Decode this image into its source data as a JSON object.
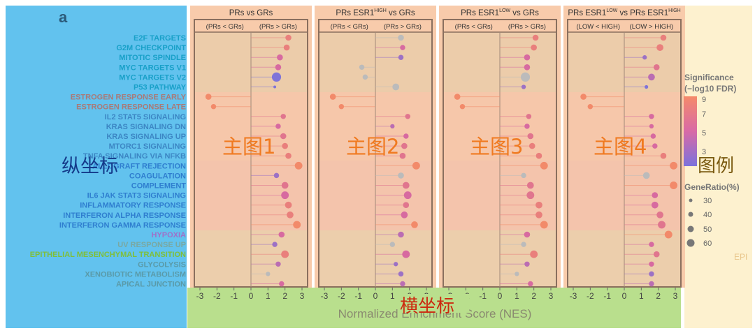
{
  "figure_label": "a",
  "xlabel": "Normalized Enrichment Score (NES)",
  "xlabel_mask": "Enrichment",
  "overlays": {
    "y_axis": "纵坐标",
    "x_axis": "横坐标",
    "legend": "图例",
    "panels": [
      "主图1",
      "主图2",
      "主图3",
      "主图4"
    ]
  },
  "legend": {
    "significance_title": "Significance",
    "significance_subtitle": "(−log10 FDR)",
    "significance_ticks": [
      "9",
      "7",
      "5",
      "3"
    ],
    "size_title": "GeneRatio(%)",
    "size_ticks": [
      "30",
      "40",
      "50",
      "60"
    ],
    "cut_text": "EPI",
    "colors": {
      "high": "#f28a6a",
      "mid": "#d76aa0",
      "low": "#7f74d8",
      "grey": "#bbbbbb"
    }
  },
  "panels": [
    {
      "title": "PRs  vs GRs",
      "sub_left": "(PRs < GRs)",
      "sub_right": "(PRs > GRs)"
    },
    {
      "title": "PRs ESR1",
      "title_sup": "HIGH",
      "title_tail": "  vs GRs",
      "sub_left": "(PRs < GRs)",
      "sub_right": "(PRs > GRs)"
    },
    {
      "title": "PRs ESR1",
      "title_sup": "LOW",
      "title_tail": "  vs GRs",
      "sub_left": "(PRs < GRs)",
      "sub_right": "(PRs > GRs)"
    },
    {
      "title": "PRs ESR1",
      "title_sup": "LOW",
      "title_tail": "  vs PRs ESR1",
      "title_sup2": "HIGH",
      "sub_left": "(LOW < HIGH)",
      "sub_right": "(LOW > HIGH)"
    }
  ],
  "chart_data": {
    "type": "scatter",
    "subtype": "lollipop",
    "xlim": [
      -3,
      3
    ],
    "xticks": [
      "-3",
      "-2",
      "-1",
      "0",
      "1",
      "2",
      "3"
    ],
    "categories": [
      "E2F TARGETS",
      "G2M CHECKPOINT",
      "MITOTIC SPINDLE",
      "MYC TARGETS V1",
      "MYC TARGETS V2",
      "P53 PATHWAY",
      "ESTROGEN RESPONSE EARLY",
      "ESTROGEN RESPONSE LATE",
      "IL2 STAT5 SIGNALING",
      "KRAS SIGNALING DN",
      "KRAS SIGNALING UP",
      "MTORC1 SIGNALING",
      "TNFA SIGNALING VIA NFKB",
      "ALLOGRAFT REJECTION",
      "COAGULATION",
      "COMPLEMENT",
      "IL6 JAK STAT3 SIGNALING",
      "INFLAMMATORY RESPONSE",
      "INTERFERON ALPHA RESPONSE",
      "INTERFERON GAMMA RESPONSE",
      "HYPOXIA",
      "UV RESPONSE UP",
      "EPITHELIAL MESENCHYMAL TRANSITION",
      "GLYCOLYSIS",
      "XENOBIOTIC METABOLISM",
      "APICAL JUNCTION"
    ],
    "category_colors": [
      "#18a0c8",
      "#18a0c8",
      "#18a0c8",
      "#18a0c8",
      "#18a0c8",
      "#18a0c8",
      "#a87a78",
      "#a87a78",
      "#3c86c4",
      "#3c86c4",
      "#3c86c4",
      "#3c86c4",
      "#3c86c4",
      "#2f7ecf",
      "#2f7ecf",
      "#2f7ecf",
      "#2f7ecf",
      "#2f7ecf",
      "#2f7ecf",
      "#2f7ecf",
      "#a070c8",
      "#7aa8a0",
      "#7fbf3a",
      "#5a9aa8",
      "#5a9aa8",
      "#5a9aa8"
    ],
    "series": [
      {
        "nes": [
          2.2,
          2.1,
          1.7,
          1.6,
          1.5,
          1.4,
          -2.5,
          -2.2,
          1.9,
          1.6,
          1.9,
          2.0,
          2.2,
          2.8,
          1.5,
          2.0,
          2.0,
          2.2,
          2.3,
          2.7,
          1.8,
          1.4,
          2.0,
          1.6,
          1.0,
          1.8
        ],
        "neglog10_fdr": [
          8,
          8,
          6,
          6,
          3,
          3,
          9,
          9,
          7,
          6,
          7,
          8,
          8,
          9,
          4,
          7,
          6,
          8,
          8,
          9,
          6,
          4,
          8,
          5,
          null,
          6
        ],
        "gene_ratio": [
          40,
          40,
          40,
          40,
          60,
          20,
          40,
          35,
          35,
          35,
          40,
          40,
          40,
          50,
          35,
          45,
          50,
          45,
          45,
          50,
          40,
          35,
          50,
          35,
          30,
          35
        ]
      },
      {
        "nes": [
          1.5,
          1.6,
          1.5,
          -0.8,
          -0.6,
          1.2,
          -2.5,
          -2.0,
          1.9,
          1.0,
          1.8,
          1.7,
          1.6,
          2.4,
          1.5,
          1.8,
          1.9,
          1.8,
          1.7,
          2.3,
          1.5,
          1.0,
          1.8,
          1.2,
          1.5,
          1.6
        ],
        "neglog10_fdr": [
          null,
          6,
          4,
          null,
          null,
          null,
          9,
          9,
          7,
          5,
          6,
          7,
          7,
          9,
          null,
          7,
          6,
          7,
          6,
          9,
          5,
          null,
          6,
          4,
          4,
          5
        ],
        "gene_ratio": [
          40,
          35,
          35,
          35,
          35,
          45,
          40,
          35,
          35,
          30,
          35,
          40,
          40,
          50,
          40,
          45,
          50,
          40,
          45,
          45,
          40,
          35,
          50,
          30,
          35,
          35
        ]
      },
      {
        "nes": [
          2.1,
          2.0,
          1.6,
          1.6,
          1.5,
          1.4,
          -2.5,
          -2.2,
          1.7,
          1.6,
          1.8,
          1.9,
          2.3,
          2.6,
          1.4,
          1.8,
          1.8,
          2.3,
          2.3,
          2.6,
          1.6,
          1.4,
          2.0,
          1.6,
          1.0,
          1.8
        ],
        "neglog10_fdr": [
          8,
          8,
          6,
          6,
          null,
          4,
          9,
          9,
          7,
          6,
          7,
          8,
          8,
          9,
          null,
          7,
          7,
          8,
          8,
          9,
          6,
          null,
          8,
          5,
          null,
          6
        ],
        "gene_ratio": [
          40,
          40,
          40,
          40,
          60,
          30,
          40,
          35,
          35,
          35,
          40,
          40,
          40,
          50,
          35,
          45,
          50,
          45,
          45,
          50,
          40,
          35,
          50,
          35,
          30,
          35
        ]
      },
      {
        "nes": [
          2.3,
          2.1,
          1.2,
          1.9,
          1.6,
          1.3,
          -2.4,
          -2.0,
          1.6,
          1.6,
          1.7,
          1.8,
          2.3,
          2.9,
          1.3,
          2.9,
          1.8,
          1.8,
          2.1,
          2.2,
          2.6,
          1.6,
          1.9,
          1.6,
          1.6,
          1.6
        ],
        "neglog10_fdr": [
          8,
          8,
          4,
          7,
          5,
          3,
          9,
          9,
          6,
          6,
          6,
          6,
          8,
          9,
          null,
          9,
          6,
          6,
          7,
          7,
          9,
          6,
          7,
          6,
          4,
          5
        ],
        "gene_ratio": [
          40,
          45,
          30,
          40,
          45,
          25,
          40,
          35,
          35,
          30,
          35,
          35,
          40,
          50,
          45,
          50,
          40,
          45,
          45,
          50,
          50,
          35,
          40,
          35,
          35,
          35
        ]
      }
    ]
  }
}
